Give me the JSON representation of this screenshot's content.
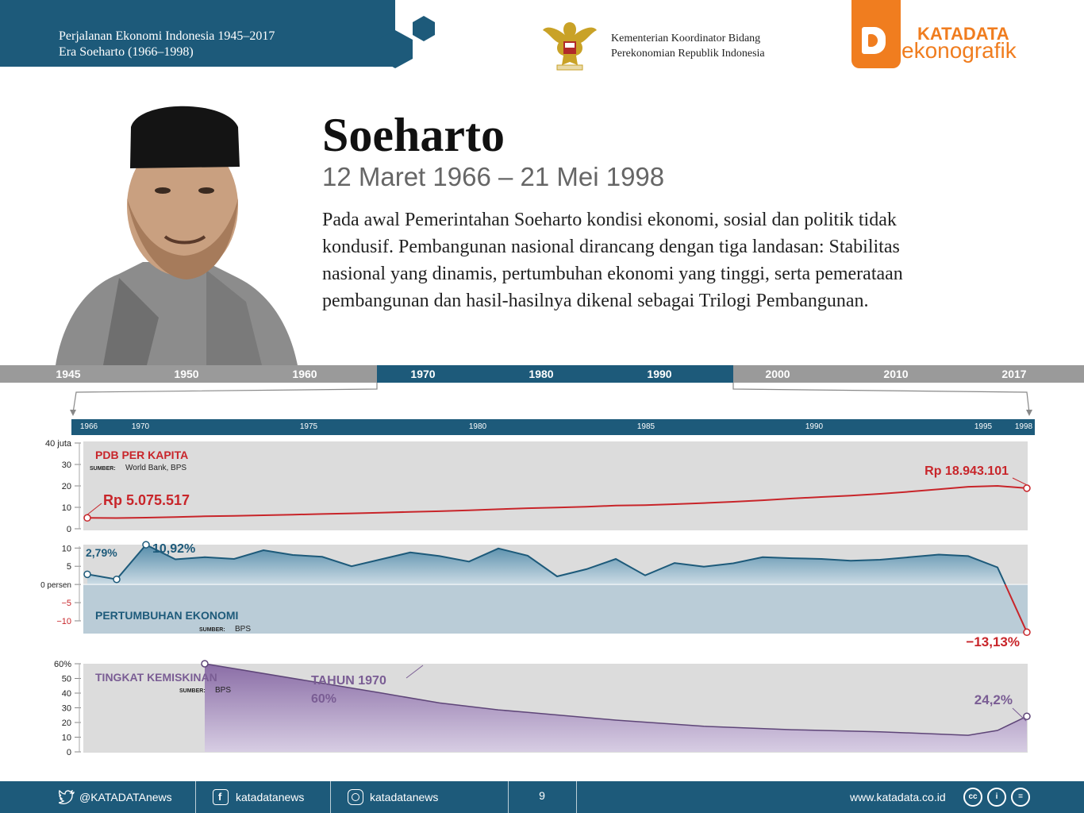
{
  "header": {
    "series_title": "Perjalanan Ekonomi Indonesia 1945–2017",
    "era": "Era Soeharto  (1966–1998)",
    "ministry_line1": "Kementerian Koordinator Bidang",
    "ministry_line2": "Perekonomian Republik Indonesia",
    "brand_top": "KATADATA",
    "brand_bottom": "ekonografik"
  },
  "profile": {
    "name": "Soeharto",
    "term": "12 Maret 1966 – 21 Mei 1998",
    "intro": "Pada awal Pemerintahan Soeharto  kondisi ekonomi, sosial dan politik tidak kondusif. Pembangunan nasional dirancang dengan tiga landasan: Stabilitas nasional yang dinamis, pertumbuhan ekonomi yang tinggi, serta pemerataan pembangunan dan hasil-hasilnya dikenal sebagai Trilogi Pembangunan."
  },
  "timeline": {
    "labels": [
      "1945",
      "1950",
      "1960",
      "1970",
      "1980",
      "1990",
      "2000",
      "2010",
      "2017"
    ],
    "active": [
      "1970",
      "1980",
      "1990"
    ],
    "years": [
      "1966",
      "1970",
      "1975",
      "1980",
      "1985",
      "1990",
      "1995",
      "1998"
    ]
  },
  "colors": {
    "accent_blue": "#1d5a7a",
    "gdp_red": "#c8252a",
    "growth_blue": "#1d5a7a",
    "poverty_purple": "#7a5d94",
    "brand_orange": "#f07d1f"
  },
  "chart_data": [
    {
      "type": "line",
      "title": "PDB PER KAPITA",
      "source_label": "SUMBER:",
      "source": "World Bank, BPS",
      "yticks": [
        "40 juta",
        "30",
        "20",
        "10",
        "0"
      ],
      "ylim": [
        0,
        40
      ],
      "x": [
        1966,
        1967,
        1968,
        1969,
        1970,
        1971,
        1972,
        1973,
        1974,
        1975,
        1976,
        1977,
        1978,
        1979,
        1980,
        1981,
        1982,
        1983,
        1984,
        1985,
        1986,
        1987,
        1988,
        1989,
        1990,
        1991,
        1992,
        1993,
        1994,
        1995,
        1996,
        1997,
        1998
      ],
      "values": [
        5.08,
        5.0,
        5.2,
        5.5,
        5.8,
        6.0,
        6.3,
        6.6,
        6.9,
        7.2,
        7.5,
        7.9,
        8.2,
        8.6,
        9.1,
        9.6,
        9.9,
        10.3,
        10.8,
        11.0,
        11.5,
        12.0,
        12.6,
        13.3,
        14.1,
        14.8,
        15.5,
        16.3,
        17.3,
        18.4,
        19.6,
        20.0,
        18.94
      ],
      "annotations": {
        "start": "Rp  5.075.517",
        "end": "Rp  18.943.101"
      }
    },
    {
      "type": "area",
      "title": "PERTUMBUHAN EKONOMI",
      "source_label": "SUMBER:",
      "source": "BPS",
      "yticks": [
        "10",
        "5",
        "0 persen",
        "−5",
        "−10"
      ],
      "ylim": [
        -13.5,
        10.5
      ],
      "x": [
        1966,
        1967,
        1968,
        1969,
        1970,
        1971,
        1972,
        1973,
        1974,
        1975,
        1976,
        1977,
        1978,
        1979,
        1980,
        1981,
        1982,
        1983,
        1984,
        1985,
        1986,
        1987,
        1988,
        1989,
        1990,
        1991,
        1992,
        1993,
        1994,
        1995,
        1996,
        1997,
        1998
      ],
      "values": [
        2.79,
        1.4,
        10.92,
        6.9,
        7.5,
        7.0,
        9.4,
        8.1,
        7.6,
        5.0,
        6.9,
        8.8,
        7.8,
        6.3,
        9.9,
        7.9,
        2.2,
        4.2,
        7.0,
        2.5,
        5.9,
        4.9,
        5.8,
        7.5,
        7.2,
        7.0,
        6.5,
        6.8,
        7.5,
        8.2,
        7.8,
        4.7,
        -13.13
      ],
      "annotations": {
        "start": "2,79%",
        "peak": "10,92%",
        "end": "−13,13%"
      }
    },
    {
      "type": "area",
      "title": "TINGKAT KEMISKINAN",
      "source_label": "SUMBER:",
      "source": "BPS",
      "yticks": [
        "60%",
        "50",
        "40",
        "30",
        "20",
        "10",
        "0"
      ],
      "ylim": [
        0,
        60
      ],
      "x": [
        1970,
        1976,
        1978,
        1980,
        1981,
        1984,
        1987,
        1990,
        1993,
        1996,
        1997,
        1998
      ],
      "values": [
        60,
        40.1,
        33.3,
        28.6,
        26.9,
        21.6,
        17.4,
        15.1,
        13.7,
        11.3,
        14.6,
        24.2
      ],
      "annotations": {
        "start_line1": "TAHUN 1970",
        "start_line2": "60%",
        "end": "24,2%"
      }
    }
  ],
  "footer": {
    "twitter": "@KATADATAnews",
    "facebook": "katadatanews",
    "instagram": "katadatanews",
    "page": "9",
    "website": "www.katadata.co.id",
    "license": [
      "cc",
      "i",
      "="
    ]
  }
}
